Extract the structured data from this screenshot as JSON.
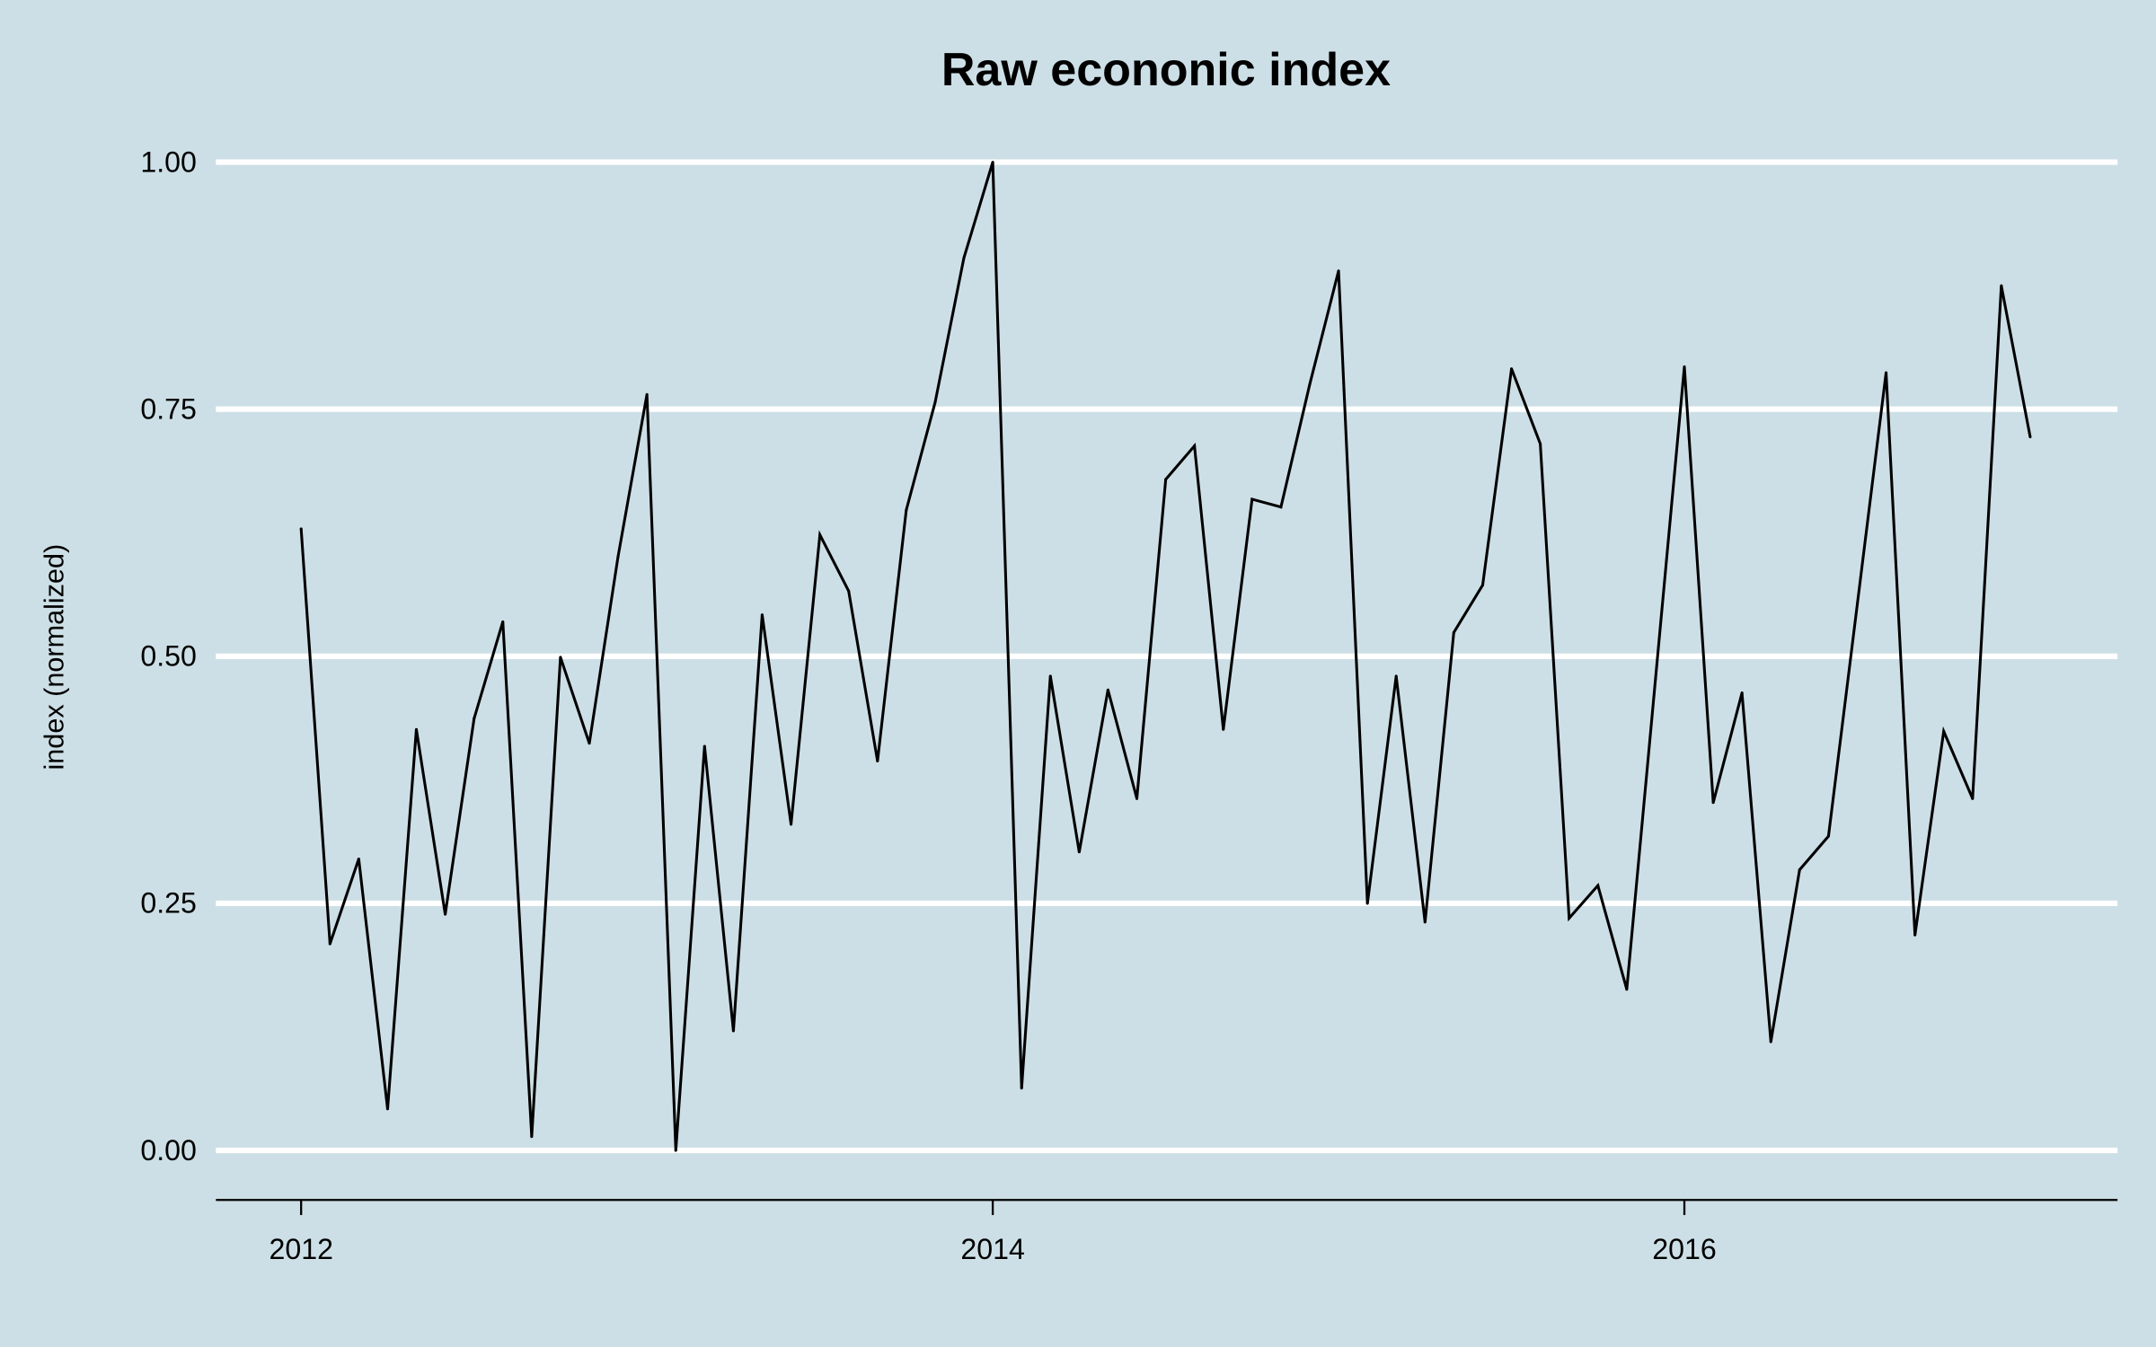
{
  "chart_data": {
    "type": "line",
    "title": "Raw econonic index",
    "xlabel": "",
    "ylabel": "index (normalized)",
    "ylim": [
      0,
      1
    ],
    "xlim": [
      "2012-01",
      "2017-01"
    ],
    "yticks": [
      0,
      0.25,
      0.5,
      0.75,
      1
    ],
    "ytick_labels": [
      "0.00",
      "0.25",
      "0.50",
      "0.75",
      "1.00"
    ],
    "xticks": [
      "2012-01",
      "2014-01",
      "2016-01"
    ],
    "xtick_labels": [
      "2012",
      "2014",
      "2016"
    ],
    "grid": "horizontal",
    "colors": {
      "background": "#cddfe6",
      "grid": "#ffffff",
      "line": "#000000"
    },
    "x": [
      "2012-01",
      "2012-02",
      "2012-03",
      "2012-04",
      "2012-05",
      "2012-06",
      "2012-07",
      "2012-08",
      "2012-09",
      "2012-10",
      "2012-11",
      "2012-12",
      "2013-01",
      "2013-02",
      "2013-03",
      "2013-04",
      "2013-05",
      "2013-06",
      "2013-07",
      "2013-08",
      "2013-09",
      "2013-10",
      "2013-11",
      "2013-12",
      "2014-01",
      "2014-02",
      "2014-03",
      "2014-04",
      "2014-05",
      "2014-06",
      "2014-07",
      "2014-08",
      "2014-09",
      "2014-10",
      "2014-11",
      "2014-12",
      "2015-01",
      "2015-02",
      "2015-03",
      "2015-04",
      "2015-05",
      "2015-06",
      "2015-07",
      "2015-08",
      "2015-09",
      "2015-10",
      "2015-11",
      "2015-12",
      "2016-01",
      "2016-02",
      "2016-03",
      "2016-04",
      "2016-05",
      "2016-06",
      "2016-07",
      "2016-08",
      "2016-09",
      "2016-10",
      "2016-11",
      "2016-12",
      "2017-01"
    ],
    "values": [
      0.629,
      0.209,
      0.295,
      0.042,
      0.426,
      0.239,
      0.437,
      0.535,
      0.014,
      0.499,
      0.412,
      0.601,
      0.765,
      0.0,
      0.409,
      0.121,
      0.542,
      0.33,
      0.623,
      0.566,
      0.394,
      0.648,
      0.757,
      0.903,
      1.0,
      0.063,
      0.48,
      0.302,
      0.466,
      0.356,
      0.679,
      0.713,
      0.426,
      0.659,
      0.651,
      0.775,
      0.89,
      0.25,
      0.48,
      0.231,
      0.524,
      0.572,
      0.791,
      0.715,
      0.235,
      0.268,
      0.163,
      0.477,
      0.793,
      0.352,
      0.463,
      0.11,
      0.284,
      0.318,
      0.553,
      0.787,
      0.218,
      0.424,
      0.356,
      0.875,
      0.722
    ]
  }
}
